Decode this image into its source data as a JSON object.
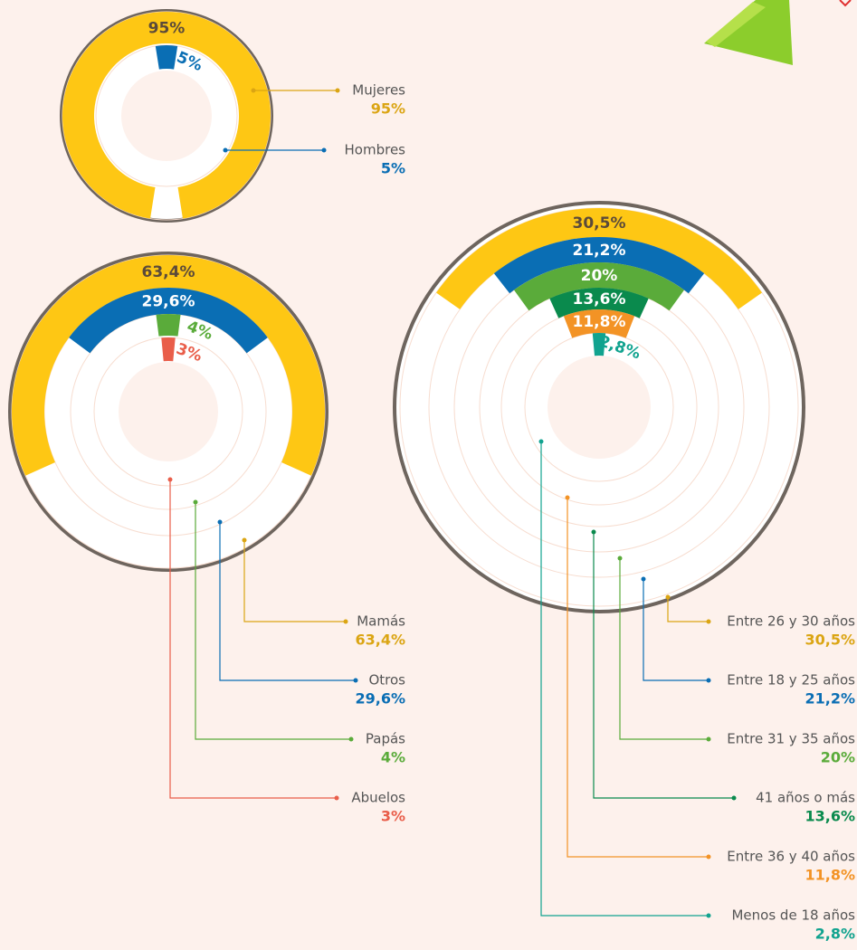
{
  "chart_data": [
    {
      "type": "radial_bar",
      "series": [
        {
          "name": "Mujeres",
          "color": "#fec714",
          "text_color": "#dba513",
          "bar_label_color": "#5b4a3a",
          "values": [
            95
          ],
          "value_labels": [
            "95%"
          ]
        },
        {
          "name": "Hombres",
          "color": "#0a6eb4",
          "text_color": "#0a6eb4",
          "bar_label_color": "#ffffff",
          "values": [
            5
          ],
          "value_labels": [
            "5%"
          ]
        }
      ]
    },
    {
      "type": "radial_bar",
      "series": [
        {
          "name": "Mamás",
          "color": "#fec714",
          "text_color": "#dba513",
          "bar_label_color": "#5b4a3a",
          "values": [
            63.4
          ],
          "value_labels": [
            "63,4%"
          ]
        },
        {
          "name": "Otros",
          "color": "#0a6eb4",
          "text_color": "#0a6eb4",
          "bar_label_color": "#ffffff",
          "values": [
            29.6
          ],
          "value_labels": [
            "29,6%"
          ]
        },
        {
          "name": "Papás",
          "color": "#5aab3a",
          "text_color": "#5aab3a",
          "bar_label_color": "#ffffff",
          "values": [
            4
          ],
          "value_labels": [
            "4%"
          ]
        },
        {
          "name": "Abuelos",
          "color": "#e95e4a",
          "text_color": "#e95e4a",
          "bar_label_color": "#ffffff",
          "values": [
            3
          ],
          "value_labels": [
            "3%"
          ]
        }
      ]
    },
    {
      "type": "radial_bar",
      "series": [
        {
          "name": "Entre 26 y 30 años",
          "color": "#fec714",
          "text_color": "#dba513",
          "bar_label_color": "#5b4a3a",
          "values": [
            30.5
          ],
          "value_labels": [
            "30,5%"
          ]
        },
        {
          "name": "Entre 18 y 25 años",
          "color": "#0a6eb4",
          "text_color": "#0a6eb4",
          "bar_label_color": "#ffffff",
          "values": [
            21.2
          ],
          "value_labels": [
            "21,2%"
          ]
        },
        {
          "name": "Entre 31 y 35 años",
          "color": "#5aab3a",
          "text_color": "#5aab3a",
          "bar_label_color": "#ffffff",
          "values": [
            20
          ],
          "value_labels": [
            "20%"
          ]
        },
        {
          "name": "41 años o más",
          "color": "#0a8a4d",
          "text_color": "#0a8a4d",
          "bar_label_color": "#ffffff",
          "values": [
            13.6
          ],
          "value_labels": [
            "13,6%"
          ]
        },
        {
          "name": "Entre 36 y 40 años",
          "color": "#f39325",
          "text_color": "#f39325",
          "bar_label_color": "#ffffff",
          "values": [
            11.8
          ],
          "value_labels": [
            "11,8%"
          ]
        },
        {
          "name": "Menos de 18 años",
          "color": "#11a38f",
          "text_color": "#11a38f",
          "bar_label_color": "#ffffff",
          "values": [
            2.8
          ],
          "value_labels": [
            "2,8%"
          ]
        }
      ]
    }
  ]
}
